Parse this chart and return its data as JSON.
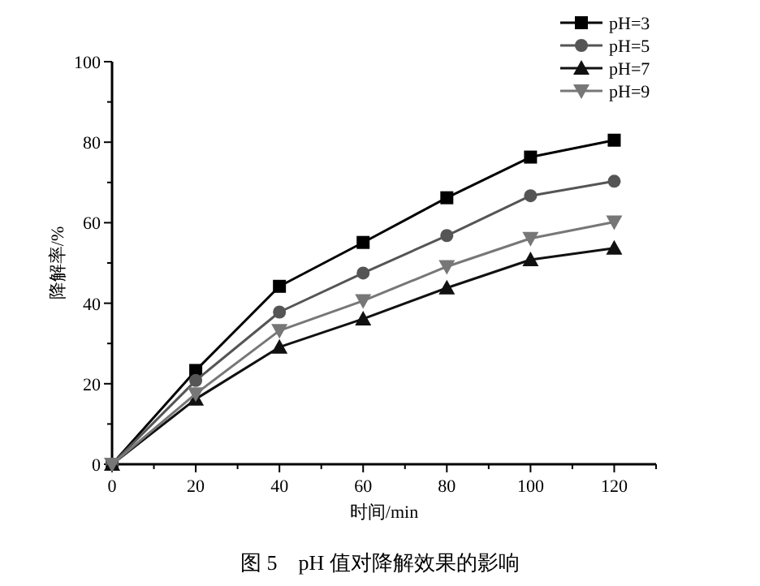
{
  "chart_data": {
    "type": "line",
    "title": "图 5　pH 值对降解效果的影响",
    "xlabel": "时间/min",
    "ylabel": "降解率/%",
    "x": [
      0,
      20,
      40,
      60,
      80,
      100,
      120
    ],
    "series": [
      {
        "name": "pH=3",
        "color": "#000000",
        "marker": "square",
        "values": [
          0,
          23.3,
          44.2,
          55.1,
          66.2,
          76.3,
          80.5
        ]
      },
      {
        "name": "pH=5",
        "color": "#555555",
        "marker": "circle",
        "values": [
          0,
          20.8,
          37.8,
          47.5,
          56.8,
          66.7,
          70.3
        ]
      },
      {
        "name": "pH=7",
        "color": "#111111",
        "marker": "triangle",
        "values": [
          0,
          16.2,
          29.1,
          36.1,
          43.8,
          50.8,
          53.7
        ]
      },
      {
        "name": "pH=9",
        "color": "#777777",
        "marker": "triangle-down",
        "values": [
          0,
          17.5,
          33.2,
          40.6,
          49.1,
          56.1,
          60.2
        ]
      }
    ],
    "xlim": [
      0,
      130
    ],
    "ylim": [
      0,
      100
    ],
    "xticks": [
      0,
      {
        "value": 10,
        "label": null
      },
      20,
      {
        "value": 30,
        "label": null
      },
      40,
      {
        "value": 50,
        "label": null
      },
      60,
      {
        "value": 70,
        "label": null
      },
      80,
      {
        "value": 90,
        "label": null
      },
      100,
      {
        "value": 110,
        "label": null
      },
      120,
      {
        "value": 130,
        "label": null
      }
    ],
    "yticks": [
      0,
      {
        "value": 10,
        "label": null
      },
      20,
      {
        "value": 30,
        "label": null
      },
      40,
      {
        "value": 50,
        "label": null
      },
      60,
      {
        "value": 70,
        "label": null
      },
      80,
      {
        "value": 90,
        "label": null
      },
      100
    ],
    "legend": "top right",
    "grid": false,
    "line_style": "solid"
  }
}
